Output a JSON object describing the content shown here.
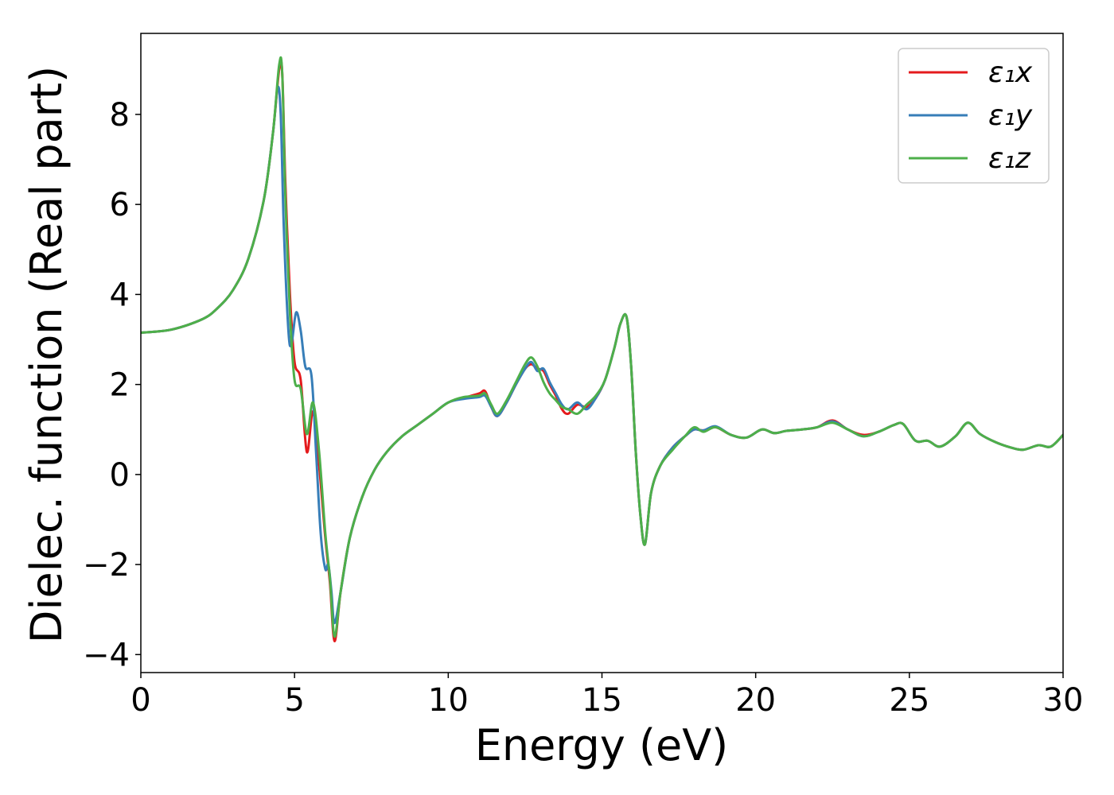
{
  "chart_data": {
    "type": "line",
    "title": "",
    "xlabel": "Energy (eV)",
    "ylabel": "Dielec. function (Real part)",
    "xlim": [
      0,
      30
    ],
    "ylim": [
      -4.4,
      9.8
    ],
    "xticks": [
      0,
      5,
      10,
      15,
      20,
      25,
      30
    ],
    "xtick_labels": [
      "0",
      "5",
      "10",
      "15",
      "20",
      "25",
      "30"
    ],
    "yticks": [
      -4,
      -2,
      0,
      2,
      4,
      6,
      8
    ],
    "ytick_labels": [
      "−4",
      "−2",
      "0",
      "2",
      "4",
      "6",
      "8"
    ],
    "grid": false,
    "legend_position": "top-right",
    "series": [
      {
        "name": "ε₁x",
        "color": "#e41a1c",
        "x": [
          0,
          1,
          2,
          2.5,
          3,
          3.5,
          4,
          4.3,
          4.5,
          4.6,
          4.7,
          4.85,
          5.0,
          5.2,
          5.4,
          5.6,
          5.8,
          6.0,
          6.15,
          6.3,
          6.5,
          6.8,
          7.2,
          7.6,
          8,
          8.5,
          9,
          9.5,
          10,
          10.5,
          11,
          11.2,
          11.4,
          11.6,
          11.9,
          12.2,
          12.5,
          12.7,
          12.9,
          13.1,
          13.3,
          13.5,
          13.7,
          13.9,
          14.2,
          14.5,
          14.8,
          15.1,
          15.4,
          15.6,
          15.8,
          15.95,
          16.1,
          16.25,
          16.4,
          16.6,
          16.9,
          17.3,
          17.7,
          18.0,
          18.3,
          18.7,
          19.2,
          19.7,
          20.2,
          20.6,
          21.0,
          21.5,
          22.0,
          22.5,
          23.0,
          23.5,
          24.0,
          24.5,
          24.8,
          25.2,
          25.6,
          26.0,
          26.5,
          26.9,
          27.3,
          27.8,
          28.3,
          28.7,
          29.2,
          29.6,
          30
        ],
        "y": [
          3.15,
          3.22,
          3.45,
          3.7,
          4.1,
          4.8,
          6.1,
          7.6,
          9.0,
          8.9,
          6.5,
          4.0,
          2.5,
          2.1,
          0.5,
          1.4,
          0.2,
          -1.4,
          -2.4,
          -3.7,
          -2.6,
          -1.4,
          -0.5,
          0.1,
          0.5,
          0.85,
          1.1,
          1.35,
          1.6,
          1.7,
          1.8,
          1.85,
          1.5,
          1.3,
          1.6,
          2.0,
          2.35,
          2.45,
          2.35,
          2.3,
          2.0,
          1.75,
          1.45,
          1.35,
          1.55,
          1.5,
          1.7,
          2.1,
          2.8,
          3.35,
          3.5,
          2.4,
          0.5,
          -0.9,
          -1.55,
          -0.4,
          0.2,
          0.6,
          0.85,
          1.0,
          0.98,
          1.05,
          0.88,
          0.82,
          1.0,
          0.92,
          0.97,
          1.0,
          1.05,
          1.2,
          1.0,
          0.88,
          0.95,
          1.1,
          1.12,
          0.75,
          0.75,
          0.62,
          0.85,
          1.15,
          0.9,
          0.72,
          0.6,
          0.55,
          0.65,
          0.62,
          0.88
        ]
      },
      {
        "name": "ε₁y",
        "color": "#377eb8",
        "x": [
          0,
          1,
          2,
          2.5,
          3,
          3.5,
          4,
          4.3,
          4.45,
          4.55,
          4.65,
          4.8,
          4.9,
          5.05,
          5.2,
          5.35,
          5.55,
          5.7,
          5.85,
          6.0,
          6.1,
          6.2,
          6.3,
          6.5,
          6.8,
          7.2,
          7.6,
          8,
          8.5,
          9,
          9.5,
          10,
          10.5,
          11,
          11.2,
          11.4,
          11.6,
          11.9,
          12.2,
          12.5,
          12.7,
          12.9,
          13.1,
          13.3,
          13.5,
          13.7,
          13.9,
          14.2,
          14.5,
          14.8,
          15.1,
          15.4,
          15.6,
          15.8,
          15.95,
          16.1,
          16.25,
          16.4,
          16.6,
          16.9,
          17.3,
          17.7,
          18.0,
          18.3,
          18.7,
          19.2,
          19.7,
          20.2,
          20.6,
          21.0,
          21.5,
          22.0,
          22.5,
          23.0,
          23.5,
          24.0,
          24.5,
          24.8,
          25.2,
          25.6,
          26.0,
          26.5,
          26.9,
          27.3,
          27.8,
          28.3,
          28.7,
          29.2,
          29.6,
          30
        ],
        "y": [
          3.15,
          3.22,
          3.45,
          3.7,
          4.1,
          4.8,
          6.1,
          7.6,
          8.6,
          8.0,
          5.5,
          3.2,
          2.9,
          3.6,
          3.2,
          2.4,
          2.2,
          0.5,
          -1.3,
          -2.1,
          -2.0,
          -2.6,
          -3.3,
          -2.6,
          -1.4,
          -0.5,
          0.1,
          0.5,
          0.85,
          1.1,
          1.35,
          1.6,
          1.68,
          1.72,
          1.75,
          1.5,
          1.3,
          1.6,
          2.0,
          2.35,
          2.5,
          2.3,
          2.35,
          2.05,
          1.8,
          1.55,
          1.45,
          1.6,
          1.45,
          1.7,
          2.1,
          2.8,
          3.35,
          3.5,
          2.4,
          0.5,
          -0.9,
          -1.55,
          -0.4,
          0.2,
          0.6,
          0.85,
          1.0,
          0.98,
          1.07,
          0.88,
          0.82,
          1.0,
          0.92,
          0.97,
          1.0,
          1.05,
          1.18,
          1.0,
          0.85,
          0.95,
          1.1,
          1.12,
          0.75,
          0.75,
          0.62,
          0.85,
          1.15,
          0.9,
          0.72,
          0.6,
          0.55,
          0.65,
          0.62,
          0.88
        ]
      },
      {
        "name": "ε₁z",
        "color": "#4daf4a",
        "x": [
          0,
          1,
          2,
          2.5,
          3,
          3.5,
          4,
          4.3,
          4.5,
          4.6,
          4.7,
          4.85,
          5.0,
          5.2,
          5.4,
          5.6,
          5.8,
          6.0,
          6.15,
          6.3,
          6.5,
          6.8,
          7.2,
          7.6,
          8,
          8.5,
          9,
          9.5,
          10,
          10.5,
          11,
          11.2,
          11.4,
          11.6,
          11.9,
          12.2,
          12.5,
          12.7,
          12.9,
          13.1,
          13.3,
          13.5,
          13.7,
          13.9,
          14.2,
          14.5,
          14.8,
          15.1,
          15.4,
          15.6,
          15.8,
          15.95,
          16.1,
          16.25,
          16.4,
          16.6,
          16.9,
          17.3,
          17.7,
          18.0,
          18.3,
          18.7,
          19.2,
          19.7,
          20.2,
          20.6,
          21.0,
          21.5,
          22.0,
          22.5,
          23.0,
          23.5,
          24.0,
          24.5,
          24.8,
          25.2,
          25.6,
          26.0,
          26.5,
          26.9,
          27.3,
          27.8,
          28.3,
          28.7,
          29.2,
          29.6,
          30
        ],
        "y": [
          3.15,
          3.22,
          3.45,
          3.7,
          4.1,
          4.8,
          6.1,
          7.6,
          9.1,
          8.9,
          6.2,
          3.6,
          2.1,
          1.9,
          0.9,
          1.6,
          0.5,
          -1.3,
          -2.3,
          -3.6,
          -2.6,
          -1.4,
          -0.5,
          0.1,
          0.5,
          0.85,
          1.1,
          1.35,
          1.6,
          1.72,
          1.75,
          1.8,
          1.55,
          1.35,
          1.65,
          2.05,
          2.45,
          2.6,
          2.4,
          2.05,
          1.8,
          1.65,
          1.5,
          1.45,
          1.35,
          1.55,
          1.75,
          2.1,
          2.8,
          3.35,
          3.5,
          2.4,
          0.5,
          -0.9,
          -1.55,
          -0.4,
          0.2,
          0.55,
          0.85,
          1.05,
          0.95,
          1.05,
          0.88,
          0.82,
          1.0,
          0.92,
          0.97,
          1.0,
          1.05,
          1.15,
          1.0,
          0.85,
          0.95,
          1.1,
          1.12,
          0.75,
          0.75,
          0.62,
          0.85,
          1.15,
          0.9,
          0.72,
          0.6,
          0.55,
          0.65,
          0.62,
          0.88
        ]
      }
    ]
  }
}
